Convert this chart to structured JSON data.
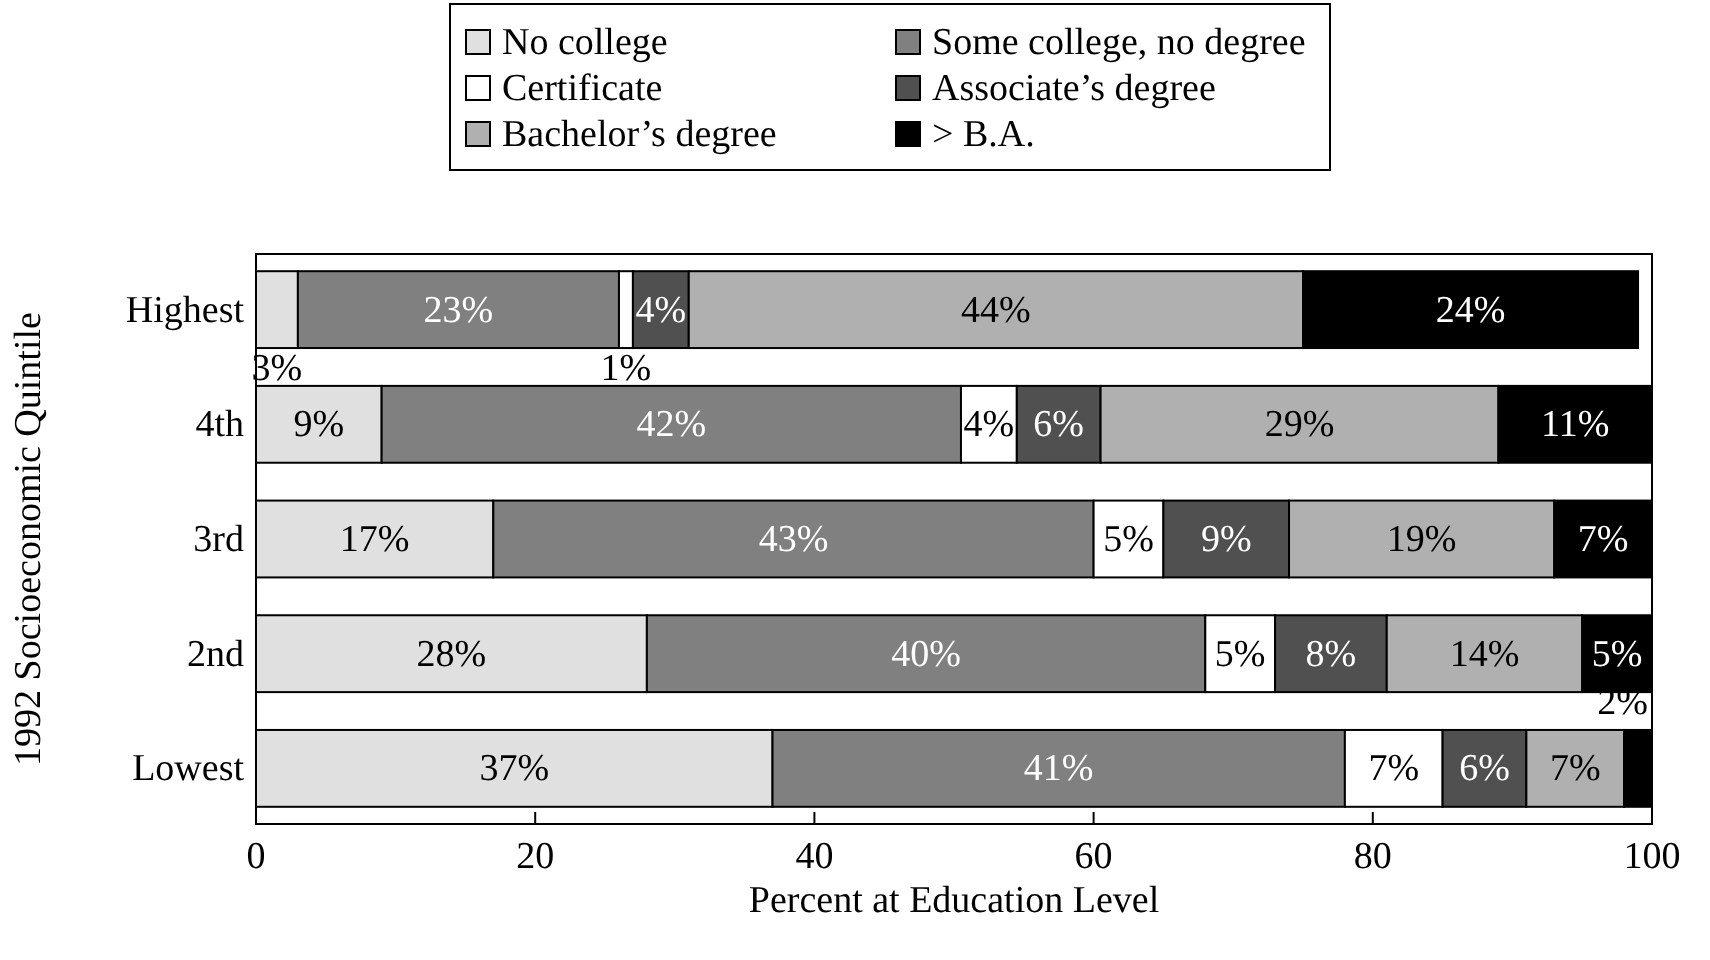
{
  "chart_data": {
    "type": "bar",
    "orientation": "horizontal",
    "stacked": true,
    "categories": [
      "Highest",
      "4th",
      "3rd",
      "2nd",
      "Lowest"
    ],
    "xlabel": "Percent at Education Level",
    "ylabel": "1992 Socioeconomic Quintile",
    "xlim": [
      0,
      100
    ],
    "xticks": [
      0,
      20,
      40,
      60,
      80,
      100
    ],
    "legend": "top",
    "grid": false,
    "series": [
      {
        "name": "No college",
        "color": "#e0e0e0",
        "values": [
          3,
          9,
          17,
          28,
          37
        ],
        "value_labels": [
          "3%",
          "9%",
          "17%",
          "28%",
          "37%"
        ]
      },
      {
        "name": "Some college, no degree",
        "color": "#808080",
        "values": [
          23,
          41.5,
          43,
          40,
          41
        ],
        "value_labels": [
          "23%",
          "42%",
          "43%",
          "40%",
          "41%"
        ]
      },
      {
        "name": "Certificate",
        "color": "#ffffff",
        "values": [
          1,
          4,
          5,
          5,
          7
        ],
        "value_labels": [
          "1%",
          "4%",
          "5%",
          "5%",
          "7%"
        ]
      },
      {
        "name": "Associate’s degree",
        "color": "#505050",
        "values": [
          4,
          6,
          9,
          8,
          6
        ],
        "value_labels": [
          "4%",
          "6%",
          "9%",
          "8%",
          "6%"
        ]
      },
      {
        "name": "Bachelor’s degree",
        "color": "#b0b0b0",
        "values": [
          44,
          28.5,
          19,
          14,
          7
        ],
        "value_labels": [
          "44%",
          "29%",
          "19%",
          "14%",
          "7%"
        ]
      },
      {
        "name": "> B.A.",
        "color": "#000000",
        "values": [
          24,
          11,
          7,
          5,
          2
        ],
        "value_labels": [
          "24%",
          "11%",
          "7%",
          "5%",
          "2%"
        ]
      }
    ]
  }
}
